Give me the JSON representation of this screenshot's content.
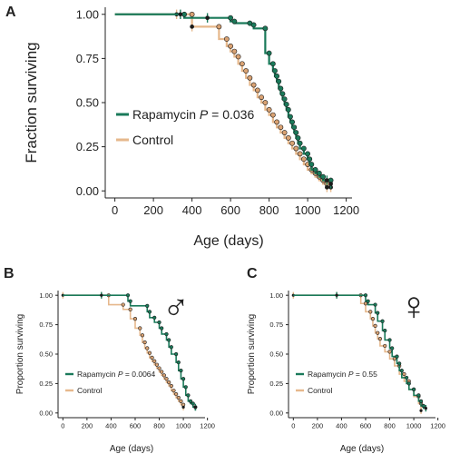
{
  "colors": {
    "rapamycin": "#1a7a5a",
    "control": "#e6b88c",
    "axis": "#222222",
    "marker_fill": "#d9a273",
    "marker_edge": "#1a1a1a"
  },
  "chart_data": [
    {
      "panel": "A",
      "type": "line",
      "xlabel": "Age (days)",
      "ylabel": "Fraction surviving",
      "xlim": [
        -50,
        1230
      ],
      "ylim": [
        -0.04,
        1.04
      ],
      "x_ticks": [
        0,
        200,
        400,
        600,
        800,
        1000,
        1200
      ],
      "y_ticks": [
        "0.00",
        "0.25",
        "0.50",
        "0.75",
        "1.00"
      ],
      "y_tick_values": [
        0,
        0.25,
        0.5,
        0.75,
        1.0
      ],
      "grid": false,
      "symbol": "",
      "legend_position": "center-left",
      "legend": [
        {
          "series": "rapamycin",
          "label": "Rapamycin ",
          "p_label": "P",
          "p_value": " = 0.036"
        },
        {
          "series": "control",
          "label": "Control"
        }
      ],
      "series": [
        {
          "key": "rapamycin",
          "x": [
            0,
            340,
            360,
            500,
            600,
            620,
            700,
            720,
            780,
            800,
            820,
            830,
            840,
            850,
            860,
            870,
            880,
            890,
            900,
            910,
            920,
            930,
            940,
            950,
            960,
            980,
            1000,
            1010,
            1020,
            1040,
            1060,
            1080,
            1100,
            1120
          ],
          "y": [
            1.0,
            1.0,
            0.98,
            0.98,
            0.96,
            0.95,
            0.94,
            0.92,
            0.78,
            0.72,
            0.68,
            0.65,
            0.62,
            0.58,
            0.55,
            0.52,
            0.49,
            0.46,
            0.42,
            0.39,
            0.36,
            0.33,
            0.3,
            0.27,
            0.24,
            0.21,
            0.18,
            0.15,
            0.12,
            0.1,
            0.08,
            0.06,
            0.06,
            0.04
          ],
          "censor_x": [
            340,
            480,
            1100,
            1120
          ],
          "censor_y": [
            1.0,
            0.98,
            0.06,
            0.04
          ]
        },
        {
          "key": "control",
          "x": [
            0,
            320,
            400,
            520,
            540,
            580,
            600,
            620,
            640,
            660,
            680,
            700,
            720,
            740,
            760,
            780,
            800,
            820,
            840,
            860,
            880,
            900,
            920,
            940,
            960,
            980,
            1000,
            1020,
            1040,
            1060,
            1080,
            1100,
            1120
          ],
          "y": [
            1.0,
            1.0,
            0.93,
            0.93,
            0.86,
            0.82,
            0.79,
            0.76,
            0.72,
            0.68,
            0.64,
            0.6,
            0.57,
            0.53,
            0.5,
            0.46,
            0.43,
            0.39,
            0.36,
            0.33,
            0.3,
            0.27,
            0.24,
            0.21,
            0.18,
            0.15,
            0.12,
            0.1,
            0.08,
            0.06,
            0.04,
            0.02,
            0.02
          ],
          "censor_x": [
            320,
            400,
            1100,
            1120
          ],
          "censor_y": [
            1.0,
            0.93,
            0.02,
            0.02
          ]
        }
      ]
    },
    {
      "panel": "B",
      "type": "line",
      "xlabel": "Age (days)",
      "ylabel": "Proportion surviving",
      "xlim": [
        -40,
        1180
      ],
      "ylim": [
        -0.04,
        1.04
      ],
      "x_ticks": [
        0,
        200,
        400,
        600,
        800,
        1000,
        1200
      ],
      "y_ticks": [
        "0.00",
        "0.25",
        "0.50",
        "0.75",
        "1.00"
      ],
      "y_tick_values": [
        0,
        0.25,
        0.5,
        0.75,
        1.0
      ],
      "grid": false,
      "symbol": "♂",
      "legend_position": "bottom-left",
      "legend": [
        {
          "series": "rapamycin",
          "label": "Rapamycin ",
          "p_label": "P",
          "p_value": " = 0.0064"
        },
        {
          "series": "control",
          "label": "Control"
        }
      ],
      "series": [
        {
          "key": "rapamycin",
          "x": [
            0,
            320,
            540,
            560,
            700,
            720,
            760,
            800,
            820,
            860,
            880,
            900,
            940,
            960,
            980,
            1000,
            1020,
            1040,
            1060,
            1080,
            1100
          ],
          "y": [
            1.0,
            1.0,
            0.95,
            0.91,
            0.86,
            0.81,
            0.77,
            0.72,
            0.67,
            0.62,
            0.56,
            0.5,
            0.43,
            0.36,
            0.29,
            0.22,
            0.15,
            0.1,
            0.08,
            0.05,
            0.02
          ],
          "censor_x": [
            320,
            1100
          ],
          "censor_y": [
            1.0,
            0.05
          ]
        },
        {
          "key": "control",
          "x": [
            0,
            320,
            380,
            500,
            560,
            600,
            640,
            660,
            680,
            700,
            720,
            740,
            760,
            780,
            800,
            820,
            840,
            860,
            880,
            900,
            920,
            940,
            960,
            980,
            1000
          ],
          "y": [
            1.0,
            1.0,
            0.92,
            0.88,
            0.8,
            0.72,
            0.66,
            0.6,
            0.55,
            0.51,
            0.47,
            0.44,
            0.41,
            0.38,
            0.35,
            0.32,
            0.29,
            0.26,
            0.23,
            0.19,
            0.16,
            0.13,
            0.1,
            0.07,
            0.05
          ],
          "censor_x": [
            0,
            320,
            1000
          ],
          "censor_y": [
            1.0,
            1.0,
            0.05
          ]
        }
      ]
    },
    {
      "panel": "C",
      "type": "line",
      "xlabel": "Age (days)",
      "ylabel": "Proportion surviving",
      "xlim": [
        -40,
        1180
      ],
      "ylim": [
        -0.04,
        1.04
      ],
      "x_ticks": [
        0,
        200,
        400,
        600,
        800,
        1000,
        1200
      ],
      "y_ticks": [
        "0.00",
        "0.25",
        "0.50",
        "0.75",
        "1.00"
      ],
      "y_tick_values": [
        0,
        0.25,
        0.5,
        0.75,
        1.0
      ],
      "grid": false,
      "symbol": "♀",
      "legend_position": "bottom-left",
      "legend": [
        {
          "series": "rapamycin",
          "label": "Rapamycin ",
          "p_label": "P",
          "p_value": " = 0.55"
        },
        {
          "series": "control",
          "label": "Control"
        }
      ],
      "series": [
        {
          "key": "rapamycin",
          "x": [
            0,
            360,
            600,
            620,
            680,
            700,
            740,
            760,
            800,
            820,
            860,
            880,
            900,
            940,
            960,
            1000,
            1040,
            1060,
            1080,
            1100
          ],
          "y": [
            1.0,
            1.0,
            0.95,
            0.92,
            0.85,
            0.78,
            0.7,
            0.62,
            0.55,
            0.48,
            0.42,
            0.36,
            0.3,
            0.25,
            0.2,
            0.15,
            0.1,
            0.06,
            0.04,
            0.04
          ],
          "censor_x": [
            360,
            1100
          ],
          "censor_y": [
            1.0,
            0.04
          ]
        },
        {
          "key": "control",
          "x": [
            0,
            360,
            560,
            600,
            640,
            660,
            680,
            700,
            720,
            760,
            800,
            840,
            880,
            920,
            960,
            1000,
            1040,
            1060
          ],
          "y": [
            1.0,
            1.0,
            0.93,
            0.86,
            0.8,
            0.74,
            0.68,
            0.63,
            0.57,
            0.52,
            0.46,
            0.4,
            0.33,
            0.27,
            0.2,
            0.14,
            0.08,
            0.02
          ],
          "censor_x": [
            0,
            360,
            1060
          ],
          "censor_y": [
            1.0,
            1.0,
            0.02
          ]
        }
      ]
    }
  ]
}
